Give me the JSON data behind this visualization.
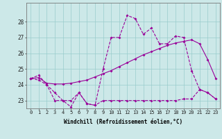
{
  "xlabel": "Windchill (Refroidissement éolien,°C)",
  "ylabel": "",
  "background_color": "#cce8e8",
  "line_color": "#990099",
  "grid_color": "#99cccc",
  "x": [
    0,
    1,
    2,
    3,
    4,
    5,
    6,
    7,
    8,
    9,
    10,
    11,
    12,
    13,
    14,
    15,
    16,
    17,
    18,
    19,
    20,
    21,
    22,
    23
  ],
  "max_line": [
    24.4,
    24.6,
    24.0,
    23.5,
    23.0,
    23.0,
    23.5,
    22.8,
    22.7,
    25.0,
    27.0,
    27.0,
    28.4,
    28.2,
    27.2,
    27.6,
    26.6,
    26.6,
    27.1,
    27.0,
    24.9,
    23.7,
    23.5,
    23.1
  ],
  "mean_line": [
    24.4,
    24.45,
    24.1,
    24.05,
    24.05,
    24.1,
    24.2,
    24.3,
    24.5,
    24.7,
    24.9,
    25.15,
    25.4,
    25.65,
    25.9,
    26.1,
    26.3,
    26.5,
    26.65,
    26.75,
    26.85,
    26.6,
    25.6,
    24.4
  ],
  "min_line": [
    24.4,
    24.3,
    24.0,
    23.0,
    23.0,
    22.6,
    23.5,
    22.8,
    22.7,
    23.0,
    23.0,
    23.0,
    23.0,
    23.0,
    23.0,
    23.0,
    23.0,
    23.0,
    23.0,
    23.1,
    23.1,
    23.7,
    23.5,
    23.1
  ],
  "ylim": [
    22.5,
    29.2
  ],
  "yticks": [
    23,
    24,
    25,
    26,
    27,
    28
  ],
  "xticks": [
    0,
    1,
    2,
    3,
    4,
    5,
    6,
    7,
    8,
    9,
    10,
    11,
    12,
    13,
    14,
    15,
    16,
    17,
    18,
    19,
    20,
    21,
    22,
    23
  ],
  "tick_fontsize": 5,
  "xlabel_fontsize": 5.5,
  "marker_size": 2,
  "line_width": 0.8
}
